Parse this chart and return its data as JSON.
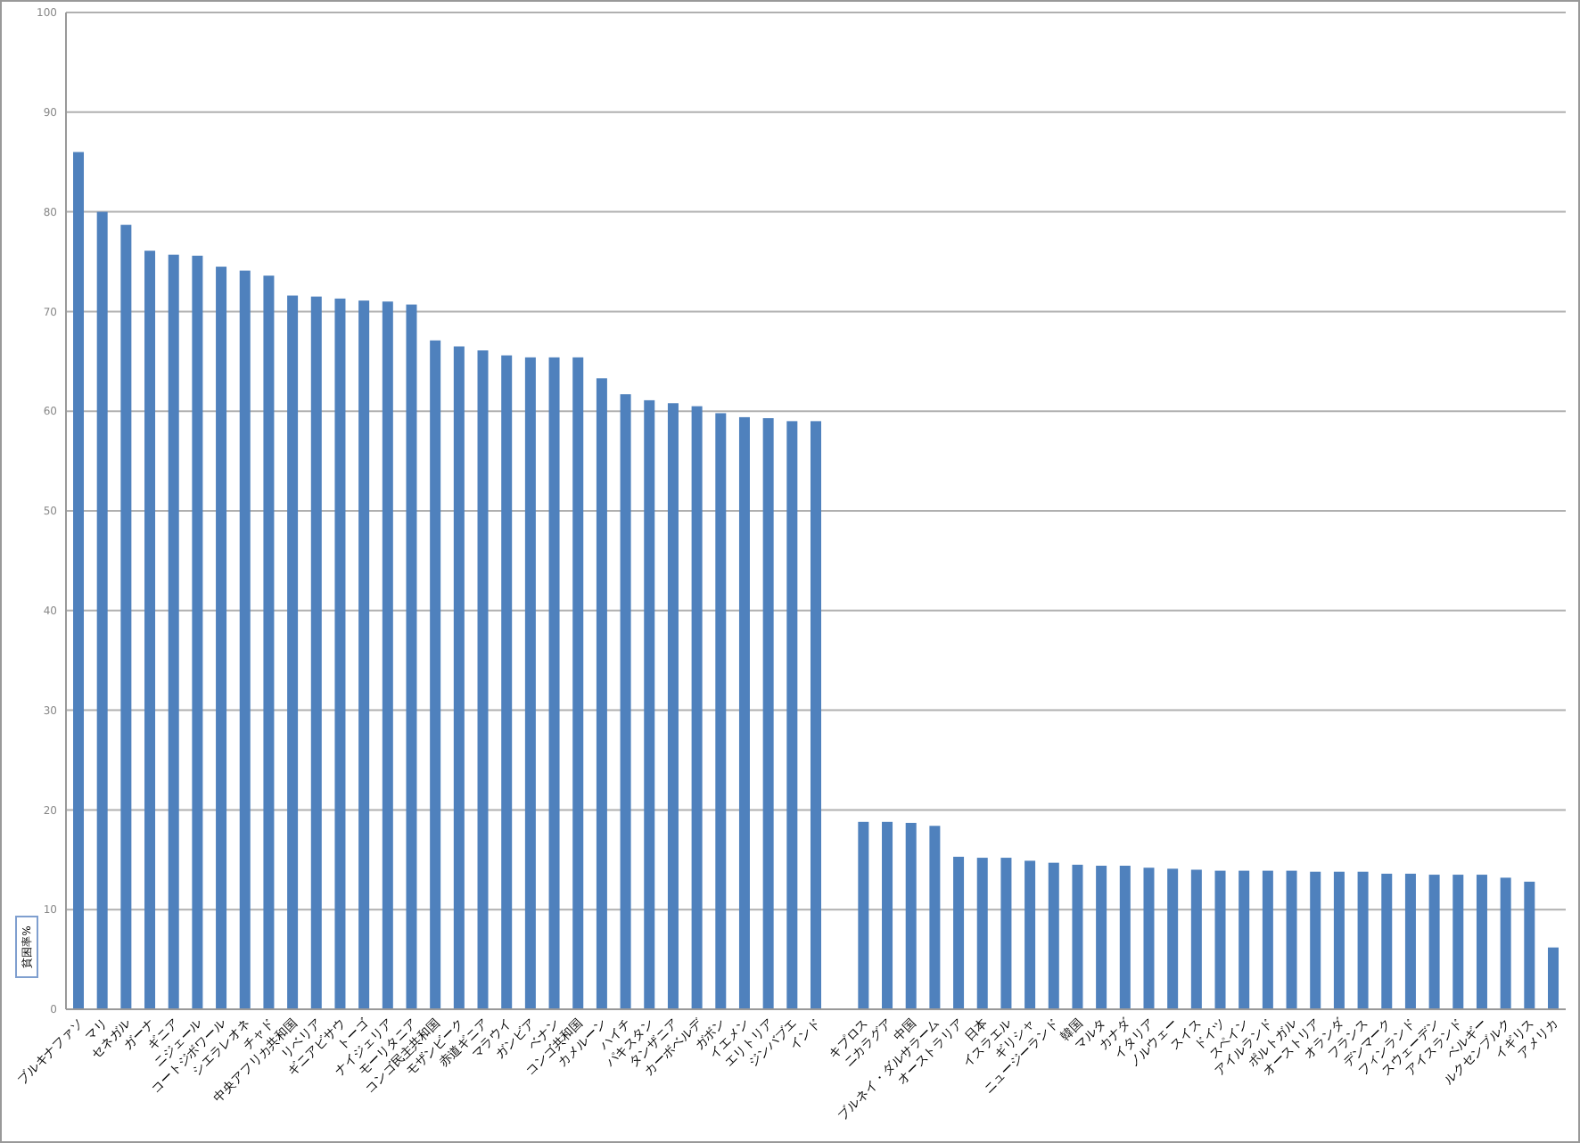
{
  "chart_data": {
    "type": "bar",
    "ylabel": "貧困率%",
    "categories": [
      "ブルキナファソ",
      "マリ",
      "セネガル",
      "ガーナ",
      "ギニア",
      "ニジェール",
      "コートジボワール",
      "シエラレオネ",
      "チャド",
      "中央アフリカ共和国",
      "リベリア",
      "ギニアビサウ",
      "トーゴ",
      "ナイジェリア",
      "モーリタニア",
      "コンゴ民主共和国",
      "モザンビーク",
      "赤道ギニア",
      "マラウイ",
      "ガンビア",
      "ベナン",
      "コンゴ共和国",
      "カメルーン",
      "ハイチ",
      "パキスタン",
      "タンザニア",
      "カーボベルデ",
      "ガボン",
      "イエメン",
      "エリトリア",
      "ジンバブエ",
      "インド",
      null,
      "キプロス",
      "ニカラグア",
      "中国",
      "ブルネイ・ダルサラーム",
      "オーストラリア",
      "日本",
      "イスラエル",
      "ギリシャ",
      "ニュージーランド",
      "韓国",
      "マルタ",
      "カナダ",
      "イタリア",
      "ノルウェー",
      "スイス",
      "ドイツ",
      "スペイン",
      "アイルランド",
      "ポルトガル",
      "オーストリア",
      "オランダ",
      "フランス",
      "デンマーク",
      "フィンランド",
      "スウェーデン",
      "アイスランド",
      "ベルギー",
      "ルクセンブルク",
      "イギリス",
      "アメリカ"
    ],
    "values": [
      86,
      80,
      78.7,
      76.1,
      75.7,
      75.6,
      74.5,
      74.1,
      73.6,
      71.6,
      71.5,
      71.3,
      71.1,
      71,
      70.7,
      67.1,
      66.5,
      66.1,
      65.6,
      65.4,
      65.4,
      65.4,
      63.3,
      61.7,
      61.1,
      60.8,
      60.5,
      59.8,
      59.4,
      59.3,
      59,
      59,
      null,
      18.8,
      18.8,
      18.7,
      18.4,
      15.3,
      15.2,
      15.2,
      14.9,
      14.7,
      14.5,
      14.4,
      14.4,
      14.2,
      14.1,
      14,
      13.9,
      13.9,
      13.9,
      13.9,
      13.8,
      13.8,
      13.8,
      13.6,
      13.6,
      13.5,
      13.5,
      13.5,
      13.2,
      12.8,
      6.2
    ],
    "color": "#4f81bd",
    "ylim": [
      0,
      100
    ],
    "yticks": [
      0,
      10,
      20,
      30,
      40,
      50,
      60,
      70,
      80,
      90,
      100
    ],
    "grid": "y"
  }
}
